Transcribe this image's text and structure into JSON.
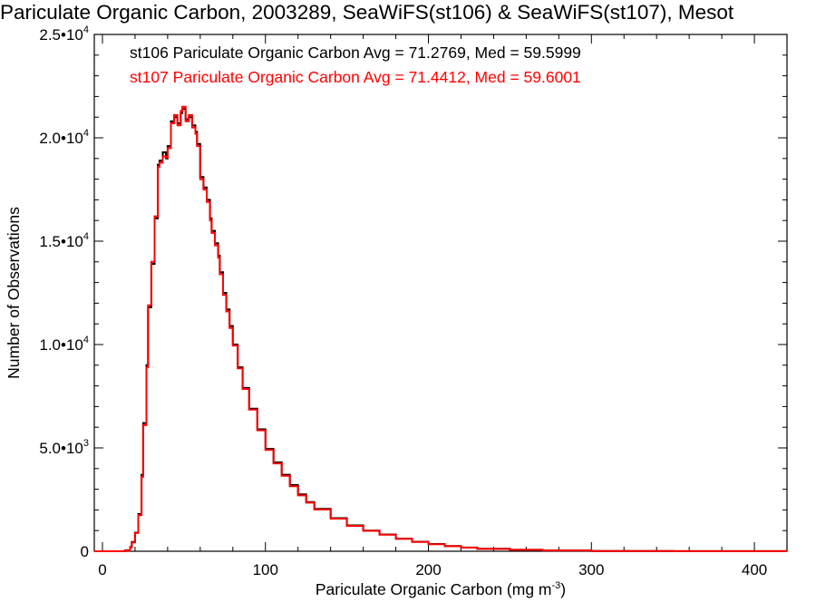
{
  "chart_data": {
    "type": "line",
    "title": "Pariculate Organic Carbon, 2003289, SeaWiFS(st106) & SeaWiFS(st107), Mesot",
    "xlabel": "Pariculate Organic Carbon (mg m",
    "xlabel_sup": "-3",
    "xlabel_end": ")",
    "ylabel": "Number of Observations",
    "xlim": [
      -5,
      420
    ],
    "ylim": [
      0,
      25000
    ],
    "x_ticks": [
      {
        "value": 0,
        "label": "0"
      },
      {
        "value": 100,
        "label": "100"
      },
      {
        "value": 200,
        "label": "200"
      },
      {
        "value": 300,
        "label": "300"
      },
      {
        "value": 400,
        "label": "400"
      }
    ],
    "y_ticks": [
      {
        "value": 0,
        "mantissa": "0",
        "exp": ""
      },
      {
        "value": 5000,
        "mantissa": "5.0•10",
        "exp": "3"
      },
      {
        "value": 10000,
        "mantissa": "1.0•10",
        "exp": "4"
      },
      {
        "value": 15000,
        "mantissa": "1.5•10",
        "exp": "4"
      },
      {
        "value": 20000,
        "mantissa": "2.0•10",
        "exp": "4"
      },
      {
        "value": 25000,
        "mantissa": "2.5•10",
        "exp": "4"
      }
    ],
    "grid": false,
    "legend": [
      {
        "text": "st106 Pariculate Organic Carbon Avg = 71.2769, Med = 59.5999",
        "color": "#000000"
      },
      {
        "text": "st107 Pariculate Organic Carbon Avg = 71.4412, Med = 59.6001",
        "color": "#ff0000"
      }
    ],
    "series": [
      {
        "name": "st106",
        "color": "#000000",
        "x": [
          -5,
          10,
          14,
          17,
          18,
          20,
          22,
          24,
          25,
          27,
          28,
          30,
          32,
          34,
          35,
          37,
          39,
          40,
          42,
          44,
          46,
          48,
          49,
          51,
          53,
          55,
          57,
          58,
          60,
          62,
          64,
          66,
          67,
          69,
          71,
          72,
          74,
          76,
          78,
          80,
          83,
          86,
          90,
          95,
          100,
          105,
          110,
          115,
          120,
          125,
          130,
          140,
          150,
          160,
          170,
          180,
          190,
          200,
          210,
          220,
          230,
          250,
          270,
          300,
          350,
          420
        ],
        "y": [
          0,
          0,
          50,
          200,
          450,
          900,
          1800,
          3700,
          6200,
          9000,
          11800,
          13900,
          16100,
          18700,
          18900,
          19300,
          19000,
          19600,
          20800,
          21000,
          20700,
          21200,
          21400,
          20900,
          21000,
          20600,
          20300,
          19700,
          18100,
          17600,
          17000,
          16100,
          15500,
          14900,
          14300,
          13500,
          12500,
          11700,
          10900,
          10000,
          8900,
          7900,
          6900,
          5900,
          4950,
          4300,
          3700,
          3200,
          2750,
          2380,
          2050,
          1600,
          1250,
          1000,
          810,
          610,
          460,
          350,
          250,
          180,
          120,
          70,
          40,
          15,
          5,
          0
        ]
      },
      {
        "name": "st107",
        "color": "#ff0000",
        "x": [
          -5,
          10,
          14,
          17,
          18,
          20,
          22,
          24,
          25,
          27,
          28,
          30,
          32,
          34,
          35,
          37,
          39,
          40,
          42,
          44,
          46,
          48,
          49,
          51,
          53,
          55,
          57,
          58,
          60,
          62,
          64,
          66,
          67,
          69,
          71,
          72,
          74,
          76,
          78,
          80,
          83,
          86,
          90,
          95,
          100,
          105,
          110,
          115,
          120,
          125,
          130,
          140,
          150,
          160,
          170,
          180,
          190,
          200,
          210,
          220,
          230,
          250,
          270,
          300,
          350,
          420
        ],
        "y": [
          0,
          0,
          40,
          180,
          430,
          880,
          1750,
          3600,
          6100,
          8900,
          11900,
          14000,
          16200,
          18600,
          18800,
          19100,
          19050,
          19500,
          20700,
          21100,
          20600,
          21300,
          21500,
          20800,
          21100,
          20500,
          20200,
          19600,
          18000,
          17500,
          16900,
          16000,
          15400,
          14800,
          14200,
          13400,
          12400,
          11600,
          10800,
          9950,
          8850,
          7850,
          6850,
          5850,
          4900,
          4250,
          3650,
          3150,
          2700,
          2350,
          2020,
          1580,
          1230,
          990,
          800,
          600,
          450,
          340,
          245,
          175,
          115,
          68,
          38,
          14,
          5,
          0
        ]
      }
    ]
  }
}
